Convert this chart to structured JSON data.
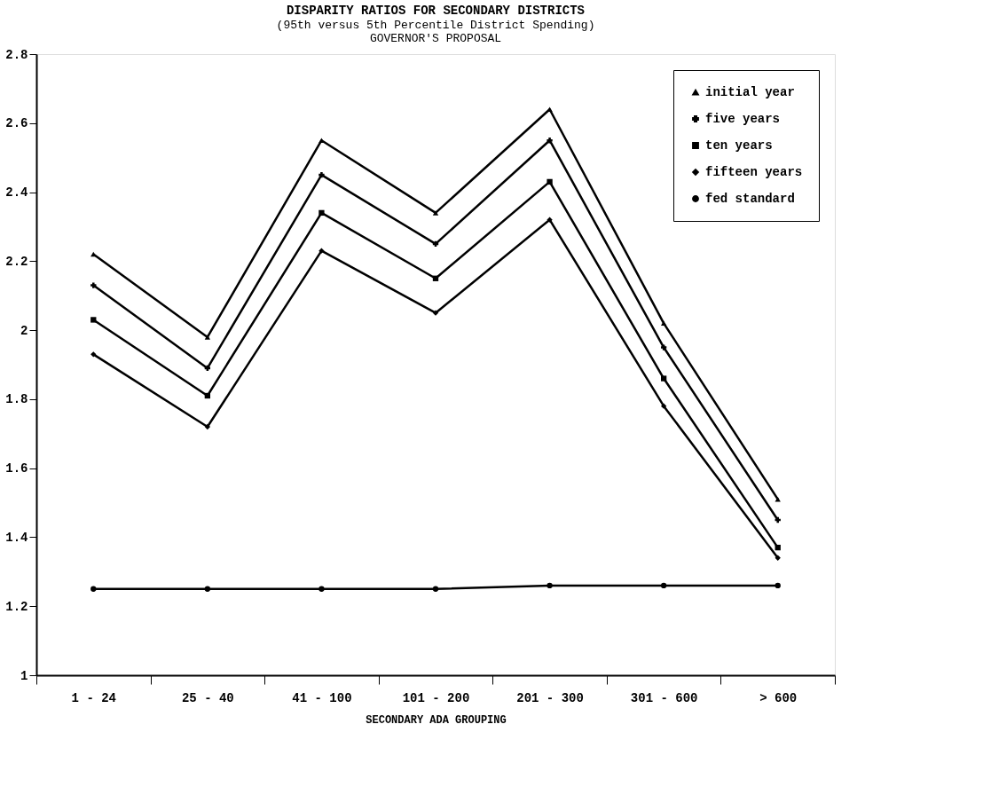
{
  "chart_data": {
    "type": "line",
    "title": "DISPARITY RATIOS FOR SECONDARY DISTRICTS",
    "subtitle": "(95th versus 5th Percentile District Spending)",
    "annotations": [
      "GOVERNOR'S PROPOSAL"
    ],
    "xlabel": "SECONDARY ADA GROUPING",
    "categories": [
      "1 - 24",
      "25 - 40",
      "41 - 100",
      "101 - 200",
      "201 - 300",
      "301 - 600",
      "> 600"
    ],
    "ylim": [
      1,
      2.8
    ],
    "yticks": [
      1,
      1.2,
      1.4,
      1.6,
      1.8,
      2,
      2.2,
      2.4,
      2.6,
      2.8
    ],
    "grid": false,
    "legend": "top right",
    "line_style": "solid",
    "series": [
      {
        "name": "initial year",
        "color": "#000000",
        "marker": "triangle",
        "values": [
          2.22,
          1.98,
          2.55,
          2.34,
          2.64,
          2.02,
          1.51
        ]
      },
      {
        "name": "five years",
        "color": "#000000",
        "marker": "cross",
        "values": [
          2.13,
          1.89,
          2.45,
          2.25,
          2.55,
          1.95,
          1.45
        ]
      },
      {
        "name": "ten years",
        "color": "#000000",
        "marker": "square",
        "values": [
          2.03,
          1.81,
          2.34,
          2.15,
          2.43,
          1.86,
          1.37
        ]
      },
      {
        "name": "fifteen years",
        "color": "#000000",
        "marker": "diamond",
        "values": [
          1.93,
          1.72,
          2.23,
          2.05,
          2.32,
          1.78,
          1.34
        ]
      },
      {
        "name": "fed standard",
        "color": "#000000",
        "marker": "circle",
        "values": [
          1.25,
          1.25,
          1.25,
          1.25,
          1.26,
          1.26,
          1.26
        ]
      }
    ]
  }
}
